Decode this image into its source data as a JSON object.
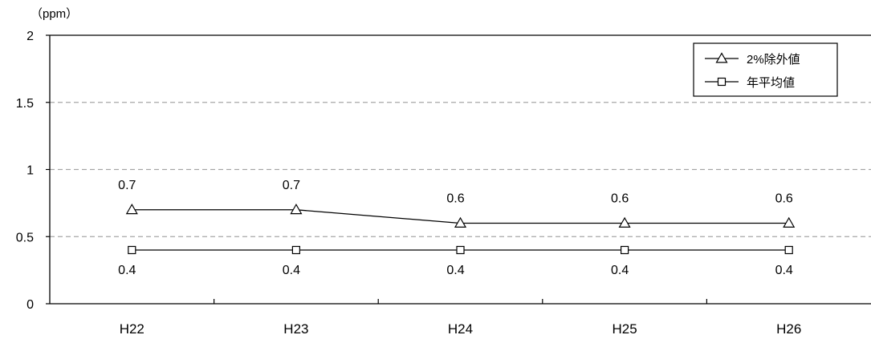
{
  "chart_data": {
    "type": "line",
    "title": "",
    "xlabel": "",
    "ylabel": "（ppm）",
    "categories": [
      "H22",
      "H23",
      "H24",
      "H25",
      "H26"
    ],
    "ylim": [
      0,
      2
    ],
    "yticks": [
      0,
      0.5,
      1,
      1.5,
      2
    ],
    "ytick_labels": [
      "0",
      "0.5",
      "1",
      "1.5",
      "2"
    ],
    "grid": "horizontal dashed",
    "legend_position": "top-right",
    "series": [
      {
        "name": "2%除外値",
        "marker": "triangle",
        "values": [
          0.7,
          0.7,
          0.6,
          0.6,
          0.6
        ],
        "labels": [
          "0.7",
          "0.7",
          "0.6",
          "0.6",
          "0.6"
        ],
        "label_position": "above"
      },
      {
        "name": "年平均値",
        "marker": "square",
        "values": [
          0.4,
          0.4,
          0.4,
          0.4,
          0.4
        ],
        "labels": [
          "0.4",
          "0.4",
          "0.4",
          "0.4",
          "0.4"
        ],
        "label_position": "below"
      }
    ],
    "colors": {
      "line": "#000000",
      "grid": "#a6a6a6",
      "background": "#ffffff"
    }
  }
}
